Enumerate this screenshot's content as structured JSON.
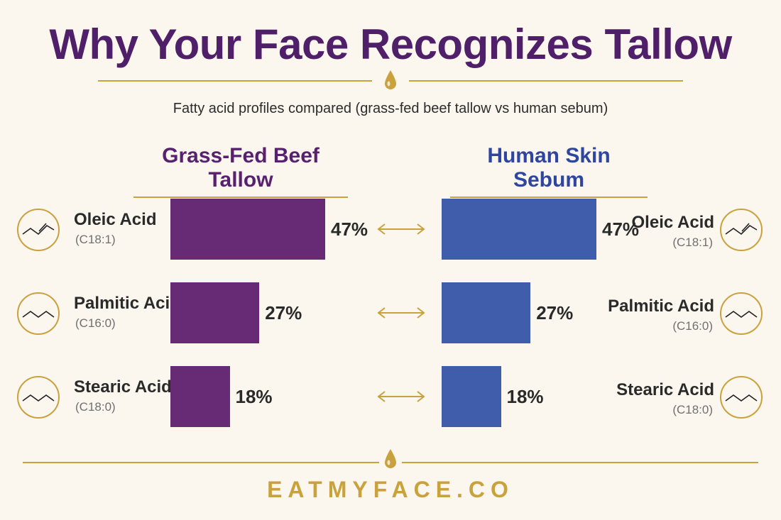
{
  "header": {
    "title": "Why Your Face Recognizes Tallow",
    "subtitle": "Fatty acid profiles compared (grass-fed beef tallow vs human sebum)"
  },
  "columns": {
    "left": "Grass-Fed Beef Tallow",
    "right": "Human Skin Sebum"
  },
  "footer": {
    "brand": "EATMYFACE.CO"
  },
  "colors": {
    "title": "#4f1f6a",
    "tallow": "#662b74",
    "sebum": "#3f5daa",
    "gold": "#c9a23e",
    "background": "#fbf7ef"
  },
  "icons": [
    "double-bond-chain-icon",
    "zigzag-chain-icon",
    "droplet-icon",
    "double-arrow-icon"
  ],
  "chart_data": {
    "type": "bar",
    "orientation": "horizontal",
    "title": "Why Your Face Recognizes Tallow",
    "subtitle": "Fatty acid profiles compared (grass-fed beef tallow vs human sebum)",
    "unit": "%",
    "xlim": [
      0,
      100
    ],
    "categories": [
      {
        "name": "Oleic Acid",
        "formula": "(C18:1)",
        "icon": "double-bond-chain-icon"
      },
      {
        "name": "Palmitic Acid",
        "formula": "(C16:0)",
        "icon": "zigzag-chain-icon"
      },
      {
        "name": "Stearic Acid",
        "formula": "(C18:0)",
        "icon": "zigzag-chain-icon"
      }
    ],
    "series": [
      {
        "name": "Grass-Fed Beef Tallow",
        "values": [
          47,
          27,
          18
        ],
        "labels": [
          "47%",
          "27%",
          "18%"
        ]
      },
      {
        "name": "Human Skin Sebum",
        "values": [
          47,
          27,
          18
        ],
        "labels": [
          "47%",
          "27%",
          "18%"
        ]
      }
    ]
  }
}
